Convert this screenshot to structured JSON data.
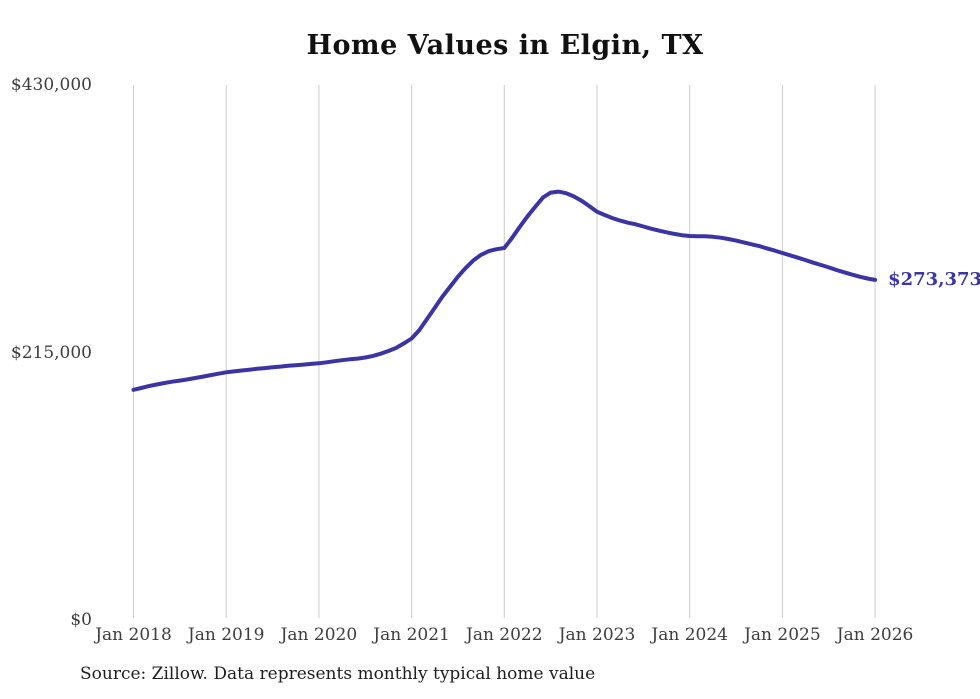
{
  "chart_data": {
    "type": "line",
    "title": "Home Values in Elgin, TX",
    "source_note": "Source: Zillow. Data represents monthly typical home value",
    "end_label": "$273,373",
    "legend_position": "none",
    "grid": "vertical-only",
    "colors": {
      "line": "#3a34a4",
      "grid": "#cccccc",
      "axis_label": "#3d3d3d",
      "title": "#111111",
      "source": "#1d1d1d"
    },
    "y_axis": {
      "range": [
        0,
        430000
      ],
      "ticks": [
        {
          "value": 430000,
          "label": "$430,000"
        },
        {
          "value": 215000,
          "label": "$215,000"
        },
        {
          "value": 0,
          "label": "$0"
        }
      ]
    },
    "x_axis": {
      "tick_labels": [
        "Jan 2018",
        "Jan 2019",
        "Jan 2020",
        "Jan 2021",
        "Jan 2022",
        "Jan 2023",
        "Jan 2024",
        "Jan 2025",
        "Jan 2026"
      ],
      "months_per_tick": 12
    },
    "series": [
      {
        "name": "Monthly typical home value",
        "start_month": "2018-01",
        "end_month": "2026-01",
        "values": [
          185000,
          186500,
          188000,
          189300,
          190500,
          191500,
          192400,
          193400,
          194500,
          195600,
          196800,
          198000,
          199100,
          199800,
          200500,
          201200,
          201900,
          202500,
          203100,
          203700,
          204300,
          204800,
          205300,
          205800,
          206300,
          207100,
          208000,
          208800,
          209500,
          210100,
          211000,
          212300,
          214000,
          216200,
          218700,
          222300,
          226250,
          233000,
          242000,
          251000,
          260000,
          268000,
          276000,
          283000,
          289000,
          293500,
          296500,
          298000,
          299000,
          307000,
          316000,
          324500,
          332000,
          339500,
          343500,
          344300,
          343000,
          340500,
          337000,
          332700,
          328200,
          325500,
          323000,
          321000,
          319300,
          318000,
          316300,
          314500,
          313000,
          311600,
          310300,
          309300,
          308600,
          308500,
          308400,
          308000,
          307300,
          306200,
          304900,
          303500,
          302000,
          300500,
          298700,
          296900,
          295000,
          293100,
          291200,
          289300,
          287200,
          285300,
          283400,
          281300,
          279500,
          277600,
          275900,
          274500,
          273373
        ]
      }
    ]
  }
}
